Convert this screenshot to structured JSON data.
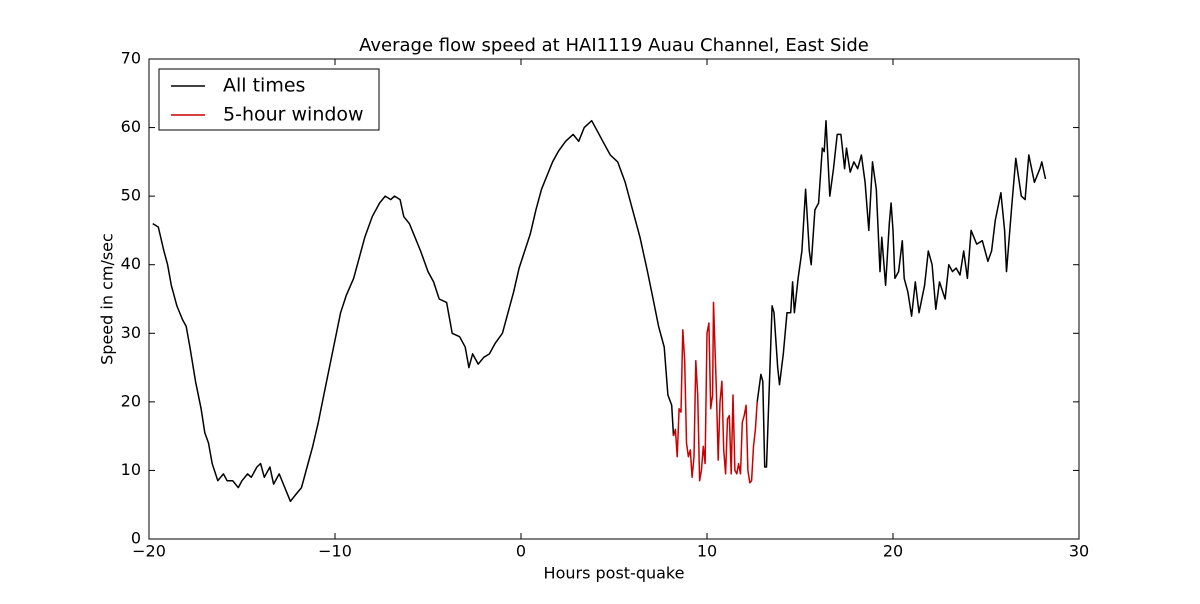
{
  "chart_data": {
    "type": "line",
    "title": "Average flow speed at HAI1119   Auau Channel, East Side",
    "xlabel": "Hours post-quake",
    "ylabel": "Speed in cm/sec",
    "xlim": [
      -20,
      30
    ],
    "ylim": [
      0,
      70
    ],
    "xticks": [
      {
        "value": -20,
        "label": "−20"
      },
      {
        "value": -10,
        "label": "−10"
      },
      0,
      10,
      20,
      30
    ],
    "yticks": [
      0,
      10,
      20,
      30,
      40,
      50,
      60,
      70
    ],
    "legend": "upper left",
    "series": [
      {
        "name": "All times",
        "color": "#000000",
        "x": [
          -19.8,
          -19.5,
          -19.2,
          -19,
          -18.8,
          -18.5,
          -18.2,
          -18,
          -17.8,
          -17.5,
          -17.2,
          -17,
          -16.8,
          -16.6,
          -16.3,
          -16,
          -15.8,
          -15.5,
          -15.2,
          -15,
          -14.7,
          -14.5,
          -14.2,
          -14,
          -13.8,
          -13.5,
          -13.3,
          -13,
          -12.7,
          -12.4,
          -12.1,
          -11.8,
          -11.5,
          -11.2,
          -10.9,
          -10.6,
          -10.3,
          -10,
          -9.7,
          -9.4,
          -9,
          -8.7,
          -8.4,
          -8,
          -7.6,
          -7.3,
          -7,
          -6.8,
          -6.5,
          -6.3,
          -6,
          -5.7,
          -5.4,
          -5,
          -4.7,
          -4.4,
          -4,
          -3.7,
          -3.3,
          -3,
          -2.8,
          -2.6,
          -2.3,
          -2,
          -1.7,
          -1.4,
          -1,
          -0.7,
          -0.4,
          -0.1,
          0.2,
          0.5,
          0.8,
          1.1,
          1.4,
          1.7,
          2,
          2.4,
          2.8,
          3.1,
          3.4,
          3.8,
          4.1,
          4.4,
          4.8,
          5.2,
          5.6,
          6,
          6.4,
          6.8,
          7.1,
          7.4,
          7.7,
          7.9,
          8.1,
          8.2,
          10.5,
          12.7,
          12.9,
          13,
          13.1,
          13.2,
          13.4,
          13.5,
          13.6,
          13.8,
          13.9,
          14.1,
          14.3,
          14.5,
          14.6,
          14.7,
          14.9,
          15.1,
          15.3,
          15.5,
          15.6,
          15.8,
          16,
          16.2,
          16.3,
          16.4,
          16.6,
          16.8,
          17,
          17.2,
          17.4,
          17.5,
          17.7,
          17.9,
          18.1,
          18.3,
          18.5,
          18.7,
          18.9,
          19.1,
          19.3,
          19.4,
          19.6,
          19.8,
          19.9,
          20,
          20.1,
          20.3,
          20.5,
          20.6,
          20.8,
          21,
          21.2,
          21.4,
          21.7,
          21.9,
          22.1,
          22.3,
          22.5,
          22.8,
          23,
          23.2,
          23.4,
          23.6,
          23.8,
          24,
          24.2,
          24.5,
          24.8,
          25.1,
          25.3,
          25.5,
          25.8,
          26,
          26.1,
          26.4,
          26.6,
          26.9,
          27.1,
          27.3,
          27.6,
          27.9,
          28,
          28.2
        ],
        "values": [
          46,
          45.5,
          42,
          40,
          37,
          34,
          32,
          31,
          28,
          23,
          19,
          15.5,
          14,
          11,
          8.5,
          9.5,
          8.5,
          8.5,
          7.5,
          8.5,
          9.5,
          9,
          10.5,
          11,
          9,
          10.5,
          8,
          9.5,
          7.5,
          5.5,
          6.5,
          7.5,
          10.5,
          13.5,
          17,
          21,
          25,
          29,
          33,
          35.5,
          38,
          41,
          44,
          47,
          49,
          50,
          49.5,
          50,
          49.5,
          47,
          46,
          44,
          42,
          39,
          37.5,
          35,
          34.5,
          30,
          29.5,
          28,
          25,
          27,
          25.5,
          26.5,
          27,
          28.5,
          30,
          33,
          36,
          39.5,
          42,
          44.5,
          48,
          51,
          53,
          55,
          56.5,
          58,
          59,
          58,
          60,
          61,
          59.5,
          58,
          56,
          55,
          52,
          48,
          44,
          39,
          35,
          31,
          28,
          21,
          19.5,
          15,
          null,
          20,
          24,
          23,
          10.5,
          10.5,
          26,
          34,
          33,
          25,
          22.5,
          27,
          33,
          33,
          37.5,
          33,
          38,
          42,
          51,
          42,
          40,
          48,
          49,
          57,
          56.5,
          61,
          50,
          54,
          59,
          59,
          54,
          57,
          53.5,
          55,
          54,
          56,
          52,
          45,
          55,
          51,
          39,
          44,
          37,
          46,
          49,
          45,
          38,
          39,
          43.5,
          38,
          36,
          32.5,
          37.5,
          33,
          37,
          42,
          40,
          33.5,
          37.5,
          35,
          40,
          39,
          39.5,
          38.5,
          42,
          38,
          45,
          43,
          43.5,
          40.5,
          42,
          46.5,
          50.5,
          45,
          39,
          49,
          55.5,
          50,
          49.5,
          56,
          52,
          54,
          55,
          52.5
        ]
      },
      {
        "name": "5-hour window",
        "color": "#cc0000",
        "x": [
          8.2,
          8.3,
          8.4,
          8.5,
          8.6,
          8.7,
          8.8,
          8.9,
          9,
          9.1,
          9.2,
          9.3,
          9.4,
          9.5,
          9.6,
          9.7,
          9.8,
          9.9,
          10,
          10.1,
          10.2,
          10.3,
          10.35,
          10.5,
          10.6,
          10.7,
          10.8,
          10.9,
          11,
          11.1,
          11.2,
          11.3,
          11.4,
          11.5,
          11.6,
          11.7,
          11.8,
          11.9,
          12,
          12.1,
          12.2,
          12.3,
          12.4,
          12.5,
          12.6,
          12.7
        ],
        "values": [
          15,
          16,
          12,
          19,
          18.5,
          30.5,
          26,
          14,
          12,
          13,
          9,
          12,
          26,
          21,
          8.5,
          10,
          13.5,
          11,
          30,
          31.5,
          19,
          21,
          34.5,
          22,
          11.5,
          20,
          23,
          13,
          9.5,
          17.5,
          18,
          9.5,
          21,
          10,
          9.5,
          11,
          9.5,
          17,
          18,
          19.5,
          10,
          8.2,
          8.5,
          13.5,
          16,
          20
        ]
      }
    ]
  }
}
